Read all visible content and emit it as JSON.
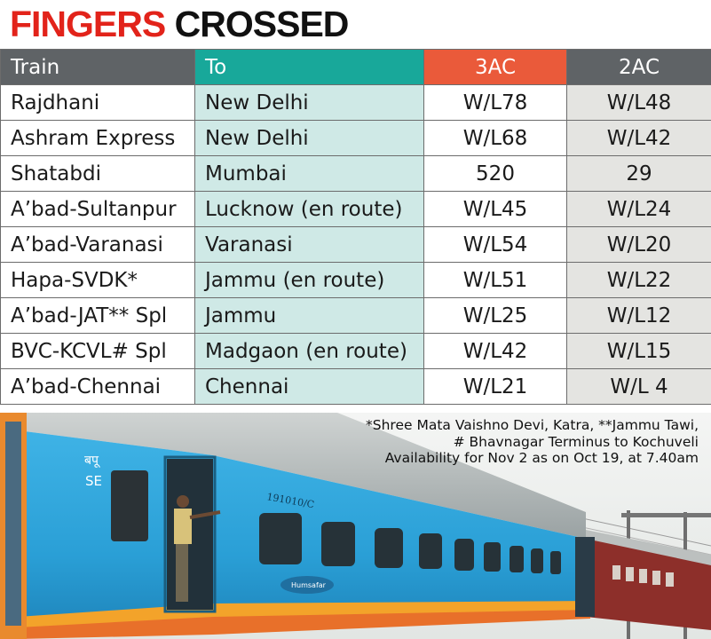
{
  "headline": {
    "part1": "FINGERS",
    "part2": "CROSSED"
  },
  "table": {
    "headers": {
      "train": "Train",
      "to": "To",
      "ac3": "3AC",
      "ac2": "2AC"
    },
    "rows": [
      {
        "train": "Rajdhani",
        "to": "New Delhi",
        "ac3": "W/L78",
        "ac2": "W/L48"
      },
      {
        "train": "Ashram Express",
        "to": "New Delhi",
        "ac3": "W/L68",
        "ac2": "W/L42"
      },
      {
        "train": "Shatabdi",
        "to": "Mumbai",
        "ac3": "520",
        "ac2": "29"
      },
      {
        "train": "A’bad-Sultanpur",
        "to": "Lucknow (en route)",
        "ac3": "W/L45",
        "ac2": "W/L24"
      },
      {
        "train": "A’bad-Varanasi",
        "to": "Varanasi",
        "ac3": "W/L54",
        "ac2": "W/L20"
      },
      {
        "train": "Hapa-SVDK*",
        "to": "Jammu (en route)",
        "ac3": "W/L51",
        "ac2": "W/L22"
      },
      {
        "train": "A’bad-JAT** Spl",
        "to": "Jammu",
        "ac3": "W/L25",
        "ac2": "W/L12"
      },
      {
        "train": "BVC-KCVL# Spl",
        "to": "Madgaon (en route)",
        "ac3": "W/L42",
        "ac2": "W/L15"
      },
      {
        "train": "A’bad-Chennai",
        "to": "Chennai",
        "ac3": "W/L21",
        "ac2": "W/L 4"
      }
    ]
  },
  "footnote": {
    "line1": "*Shree Mata Vaishno Devi, Katra, **Jammu Tawi,",
    "line2": "# Bhavnagar Terminus to Kochuveli",
    "line3": "Availability for Nov 2 as on Oct 19, at 7.40am"
  },
  "photo": {
    "coach_marking": "बपू",
    "coach_code": "SE",
    "coach_number": "191010/C",
    "emblem_text": "Humsafar"
  },
  "colors": {
    "headline_red": "#e2231a",
    "header_grey": "#5f6366",
    "header_teal": "#18a89a",
    "header_orange": "#ea5a3a",
    "to_column_tint": "#cfe9e6",
    "ac2_column_tint": "#e4e4e1",
    "coach_blue": "#2a9fd6"
  }
}
